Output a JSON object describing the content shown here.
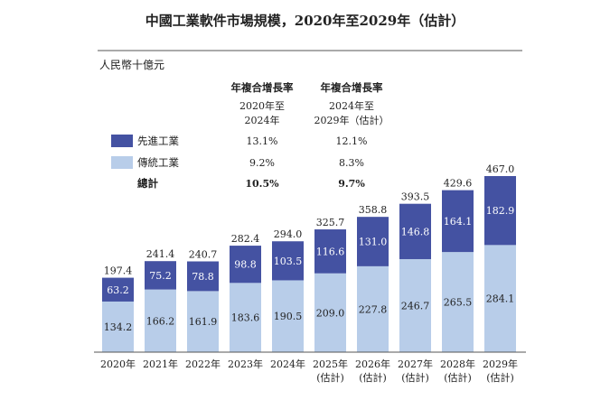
{
  "chart_data": {
    "type": "bar",
    "stacked": true,
    "title": "中國工業軟件市場規模，2020年至2029年（估計）",
    "ylabel": "人民幣十億元",
    "categories": [
      "2020年",
      "2021年",
      "2022年",
      "2023年",
      "2024年",
      "2025年\n(估計)",
      "2026年\n(估計)",
      "2027年\n(估計)",
      "2028年\n(估計)",
      "2029年\n(估計)"
    ],
    "series": [
      {
        "name": "傳統工業",
        "color": "#b8cde9",
        "values": [
          134.2,
          166.2,
          161.9,
          183.6,
          190.5,
          209.0,
          227.8,
          246.7,
          265.5,
          284.1
        ]
      },
      {
        "name": "先進工業",
        "color": "#4452a2",
        "values": [
          63.2,
          75.2,
          78.8,
          98.8,
          103.5,
          116.6,
          131.0,
          146.8,
          164.1,
          182.9
        ]
      }
    ],
    "totals": [
      197.4,
      241.4,
      240.7,
      282.4,
      294.0,
      325.7,
      358.8,
      393.5,
      429.6,
      467.0
    ],
    "ylim": [
      0,
      467.0
    ],
    "legend": "top-left",
    "grid": false,
    "cagr_table": {
      "headers": [
        {
          "title": "年複合增長率",
          "sub1": "2020年至",
          "sub2": "2024年"
        },
        {
          "title": "年複合增長率",
          "sub1": "2024年至",
          "sub2": "2029年（估計）"
        }
      ],
      "rows": [
        {
          "label": "先進工業",
          "color": "#4452a2",
          "v1": "13.1%",
          "v2": "12.1%",
          "bold": false
        },
        {
          "label": "傳統工業",
          "color": "#b8cde9",
          "v1": "9.2%",
          "v2": "8.3%",
          "bold": false
        },
        {
          "label": "總計",
          "color": "",
          "v1": "10.5%",
          "v2": "9.7%",
          "bold": true
        }
      ]
    }
  }
}
